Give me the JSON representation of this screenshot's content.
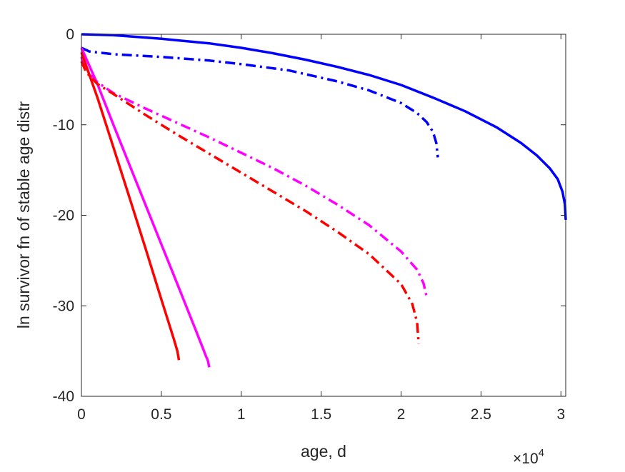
{
  "chart_data": {
    "type": "line",
    "title": "",
    "xlabel": "age, d",
    "ylabel": "ln survivor fn of stable age distr",
    "x_exponent_label": "×10",
    "x_exponent_power": "4",
    "xlim": [
      0,
      30300
    ],
    "ylim": [
      -40,
      0
    ],
    "xticks": [
      0,
      5000,
      10000,
      15000,
      20000,
      25000,
      30000
    ],
    "xtick_labels": [
      "0",
      "0.5",
      "1",
      "1.5",
      "2",
      "2.5",
      "3"
    ],
    "yticks": [
      0,
      -10,
      -20,
      -30,
      -40
    ],
    "ytick_labels": [
      "0",
      "-10",
      "-20",
      "-30",
      "-40"
    ],
    "grid": false,
    "legend": "none",
    "series": [
      {
        "color": "#0000ff",
        "style": "solid",
        "x": [
          0,
          2000,
          5000,
          8000,
          10000,
          12000,
          14000,
          16000,
          18000,
          20000,
          22000,
          24000,
          26000,
          27500,
          28500,
          29300,
          29800,
          30100,
          30250,
          30300
        ],
        "y": [
          0,
          -0.1,
          -0.5,
          -1.0,
          -1.5,
          -2.1,
          -2.8,
          -3.6,
          -4.5,
          -5.6,
          -7.0,
          -8.5,
          -10.3,
          -12.0,
          -13.4,
          -14.8,
          -16.0,
          -17.4,
          -18.8,
          -20.5
        ]
      },
      {
        "color": "#0000ff",
        "style": "dashdot",
        "x": [
          0,
          500,
          2000,
          5000,
          8000,
          10000,
          13000,
          16000,
          18000,
          20000,
          21000,
          21600,
          22000,
          22200,
          22300
        ],
        "y": [
          -1.5,
          -1.9,
          -2.2,
          -2.5,
          -2.9,
          -3.3,
          -4.0,
          -5.2,
          -6.2,
          -7.6,
          -8.7,
          -9.7,
          -10.8,
          -12.0,
          -13.6
        ]
      },
      {
        "color": "#ff00ff",
        "style": "solid",
        "x": [
          0,
          1000,
          2000,
          3000,
          4000,
          5000,
          6000,
          7000,
          7600,
          7800,
          7900,
          8000
        ],
        "y": [
          -1.5,
          -5.5,
          -10.0,
          -14.4,
          -18.8,
          -23.2,
          -27.6,
          -32.0,
          -34.7,
          -35.6,
          -36.0,
          -36.8
        ]
      },
      {
        "color": "#ff00ff",
        "style": "dashdot",
        "x": [
          0,
          300,
          1000,
          2000,
          4000,
          6000,
          8000,
          10000,
          12000,
          14000,
          16000,
          18000,
          20000,
          21000,
          21400,
          21600
        ],
        "y": [
          -2.5,
          -3.8,
          -5.3,
          -6.5,
          -8.2,
          -9.8,
          -11.4,
          -13.1,
          -14.8,
          -16.7,
          -18.8,
          -21.1,
          -24.0,
          -26.0,
          -27.5,
          -29.0
        ]
      },
      {
        "color": "#ff0000",
        "style": "solid",
        "x": [
          0,
          500,
          1000,
          2000,
          3000,
          4000,
          5000,
          5500,
          5800,
          6000,
          6100
        ],
        "y": [
          -2.0,
          -4.5,
          -7.0,
          -12.5,
          -18.0,
          -23.6,
          -29.3,
          -32.1,
          -33.8,
          -35.0,
          -36.0
        ]
      },
      {
        "color": "#ff0000",
        "style": "dashdot",
        "x": [
          0,
          300,
          1000,
          2000,
          4000,
          6000,
          8000,
          10000,
          12000,
          14000,
          16000,
          18000,
          20000,
          20700,
          21000,
          21100
        ],
        "y": [
          -3.0,
          -4.2,
          -5.5,
          -6.6,
          -8.9,
          -11.1,
          -13.2,
          -15.3,
          -17.4,
          -19.5,
          -21.8,
          -24.3,
          -27.6,
          -29.8,
          -31.8,
          -34.2
        ]
      }
    ]
  }
}
